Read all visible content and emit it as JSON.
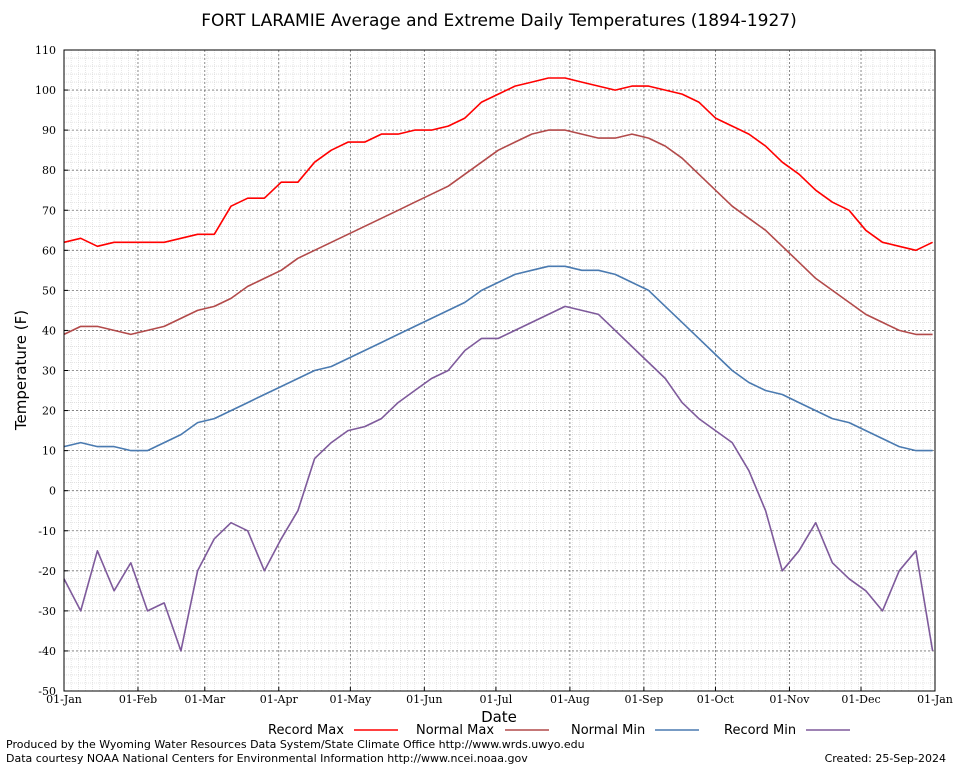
{
  "chart_data": {
    "type": "line",
    "title": "FORT LARAMIE Average and Extreme Daily Temperatures (1894-1927)",
    "xlabel": "Date",
    "ylabel": "Temperature (F)",
    "ylim": [
      -50,
      110
    ],
    "yticks": [
      110,
      100,
      90,
      80,
      70,
      60,
      50,
      40,
      30,
      20,
      10,
      0,
      -10,
      -20,
      -30,
      -40,
      -50
    ],
    "xticks": [
      "01-Jan",
      "01-Feb",
      "01-Mar",
      "01-Apr",
      "01-May",
      "01-Jun",
      "01-Jul",
      "01-Aug",
      "01-Sep",
      "01-Oct",
      "01-Nov",
      "01-Dec",
      "01-Jan"
    ],
    "grid": true,
    "legend_position": "bottom",
    "series": [
      {
        "name": "Record Max",
        "color": "#ff0000",
        "x": [
          1,
          8,
          15,
          22,
          29,
          36,
          43,
          50,
          57,
          64,
          71,
          78,
          85,
          92,
          99,
          106,
          113,
          120,
          127,
          134,
          141,
          148,
          155,
          162,
          169,
          176,
          183,
          190,
          197,
          204,
          211,
          218,
          225,
          232,
          239,
          246,
          253,
          260,
          267,
          274,
          281,
          288,
          295,
          302,
          309,
          316,
          323,
          330,
          337,
          344,
          351,
          358,
          365
        ],
        "values": [
          62,
          63,
          61,
          62,
          62,
          62,
          62,
          63,
          64,
          64,
          71,
          73,
          73,
          77,
          77,
          82,
          85,
          87,
          87,
          89,
          89,
          90,
          90,
          91,
          93,
          97,
          99,
          101,
          102,
          103,
          103,
          102,
          101,
          100,
          101,
          101,
          100,
          99,
          97,
          93,
          91,
          89,
          86,
          82,
          79,
          75,
          72,
          70,
          65,
          62,
          61,
          60,
          62
        ]
      },
      {
        "name": "Normal Max",
        "color": "#b24a4a",
        "x": [
          1,
          8,
          15,
          22,
          29,
          36,
          43,
          50,
          57,
          64,
          71,
          78,
          85,
          92,
          99,
          106,
          113,
          120,
          127,
          134,
          141,
          148,
          155,
          162,
          169,
          176,
          183,
          190,
          197,
          204,
          211,
          218,
          225,
          232,
          239,
          246,
          253,
          260,
          267,
          274,
          281,
          288,
          295,
          302,
          309,
          316,
          323,
          330,
          337,
          344,
          351,
          358,
          365
        ],
        "values": [
          39,
          41,
          41,
          40,
          39,
          40,
          41,
          43,
          45,
          46,
          48,
          51,
          53,
          55,
          58,
          60,
          62,
          64,
          66,
          68,
          70,
          72,
          74,
          76,
          79,
          82,
          85,
          87,
          89,
          90,
          90,
          89,
          88,
          88,
          89,
          88,
          86,
          83,
          79,
          75,
          71,
          68,
          65,
          61,
          57,
          53,
          50,
          47,
          44,
          42,
          40,
          39,
          39
        ]
      },
      {
        "name": "Normal Min",
        "color": "#4a7ab0",
        "x": [
          1,
          8,
          15,
          22,
          29,
          36,
          43,
          50,
          57,
          64,
          71,
          78,
          85,
          92,
          99,
          106,
          113,
          120,
          127,
          134,
          141,
          148,
          155,
          162,
          169,
          176,
          183,
          190,
          197,
          204,
          211,
          218,
          225,
          232,
          239,
          246,
          253,
          260,
          267,
          274,
          281,
          288,
          295,
          302,
          309,
          316,
          323,
          330,
          337,
          344,
          351,
          358,
          365
        ],
        "values": [
          11,
          12,
          11,
          11,
          10,
          10,
          12,
          14,
          17,
          18,
          20,
          22,
          24,
          26,
          28,
          30,
          31,
          33,
          35,
          37,
          39,
          41,
          43,
          45,
          47,
          50,
          52,
          54,
          55,
          56,
          56,
          55,
          55,
          54,
          52,
          50,
          46,
          42,
          38,
          34,
          30,
          27,
          25,
          24,
          22,
          20,
          18,
          17,
          15,
          13,
          11,
          10,
          10
        ]
      },
      {
        "name": "Record Min",
        "color": "#7e5a9b",
        "x": [
          1,
          8,
          15,
          22,
          29,
          36,
          43,
          50,
          57,
          64,
          71,
          78,
          85,
          92,
          99,
          106,
          113,
          120,
          127,
          134,
          141,
          148,
          155,
          162,
          169,
          176,
          183,
          190,
          197,
          204,
          211,
          218,
          225,
          232,
          239,
          246,
          253,
          260,
          267,
          274,
          281,
          288,
          295,
          302,
          309,
          316,
          323,
          330,
          337,
          344,
          351,
          358,
          365
        ],
        "values": [
          -22,
          -30,
          -15,
          -25,
          -18,
          -30,
          -28,
          -40,
          -20,
          -12,
          -8,
          -10,
          -20,
          -12,
          -5,
          8,
          12,
          15,
          16,
          18,
          22,
          25,
          28,
          30,
          35,
          38,
          38,
          40,
          42,
          44,
          46,
          45,
          44,
          40,
          36,
          32,
          28,
          22,
          18,
          15,
          12,
          5,
          -5,
          -20,
          -15,
          -8,
          -18,
          -22,
          -25,
          -30,
          -20,
          -15,
          -40
        ]
      }
    ]
  },
  "legend": {
    "record_max": "Record Max",
    "normal_max": "Normal Max",
    "normal_min": "Normal Min",
    "record_min": "Record Min"
  },
  "footer": {
    "produced_by": "Produced by the Wyoming Water Resources Data System/State Climate Office http://www.wrds.uwyo.edu",
    "courtesy": "Data courtesy NOAA National Centers for Environmental Information http://www.ncei.noaa.gov",
    "created": "Created:  25-Sep-2024"
  }
}
